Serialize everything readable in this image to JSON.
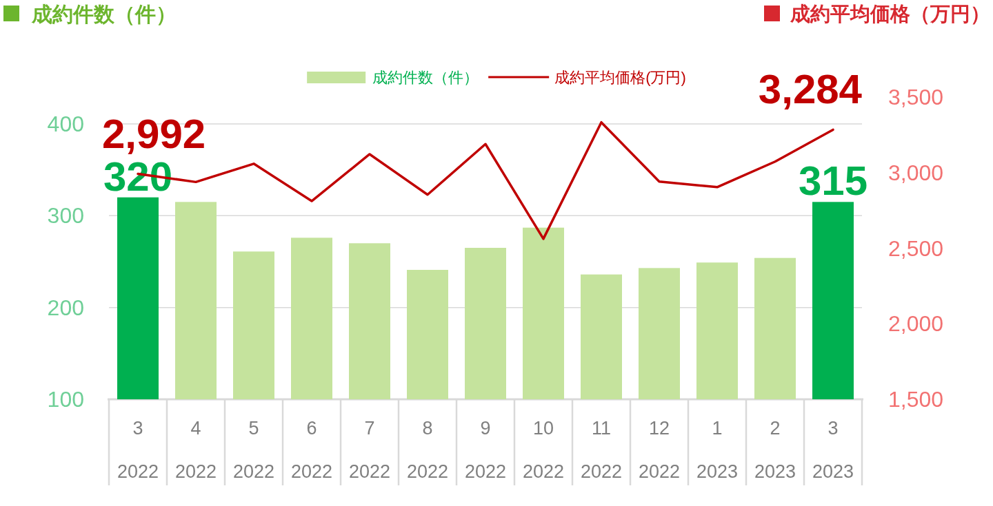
{
  "chart_data": {
    "type": "bar",
    "ylabel": "成約件数（件）",
    "y2label": "成約平均価格（万円）",
    "categories": [
      "3\n2022",
      "4\n2022",
      "5\n2022",
      "6\n2022",
      "7\n2022",
      "8\n2022",
      "9\n2022",
      "10\n2022",
      "11\n2022",
      "12\n2022",
      "1\n2023",
      "2\n2023",
      "3\n2023"
    ],
    "series": [
      {
        "name": "成約件数（件）",
        "color": "#c5e39d",
        "colors": [
          "#00b050",
          "#c5e39d",
          "#c5e39d",
          "#c5e39d",
          "#c5e39d",
          "#c5e39d",
          "#c5e39d",
          "#c5e39d",
          "#c5e39d",
          "#c5e39d",
          "#c5e39d",
          "#c5e39d",
          "#00b050"
        ],
        "values": [
          320,
          315,
          261,
          276,
          270,
          241,
          265,
          287,
          236,
          243,
          249,
          254,
          315
        ],
        "value_labels": [
          "320",
          null,
          null,
          null,
          null,
          null,
          null,
          null,
          null,
          null,
          null,
          null,
          "315"
        ]
      },
      {
        "name": "成約平均価格(万円)",
        "type": "line",
        "axis": "y2",
        "color": "#c00000",
        "values": [
          2992,
          2938,
          3059,
          2812,
          3122,
          2854,
          3189,
          2562,
          3333,
          2941,
          2904,
          3073,
          3284
        ],
        "value_labels": [
          "2,992",
          null,
          null,
          null,
          null,
          null,
          null,
          null,
          null,
          null,
          null,
          null,
          "3,284"
        ]
      }
    ],
    "ylim": [
      100,
      400
    ],
    "yticks": [
      100,
      200,
      300,
      400
    ],
    "y2lim": [
      1500,
      3500
    ],
    "y2ticks": [
      {
        "value": 1500,
        "label": "1,500"
      },
      {
        "value": 2000,
        "label": "2,000"
      },
      {
        "value": 2500,
        "label": "2,500"
      },
      {
        "value": 3000,
        "label": "3,000"
      },
      {
        "value": 3500,
        "label": "3,500"
      }
    ],
    "grid": "y",
    "legend": "top"
  }
}
